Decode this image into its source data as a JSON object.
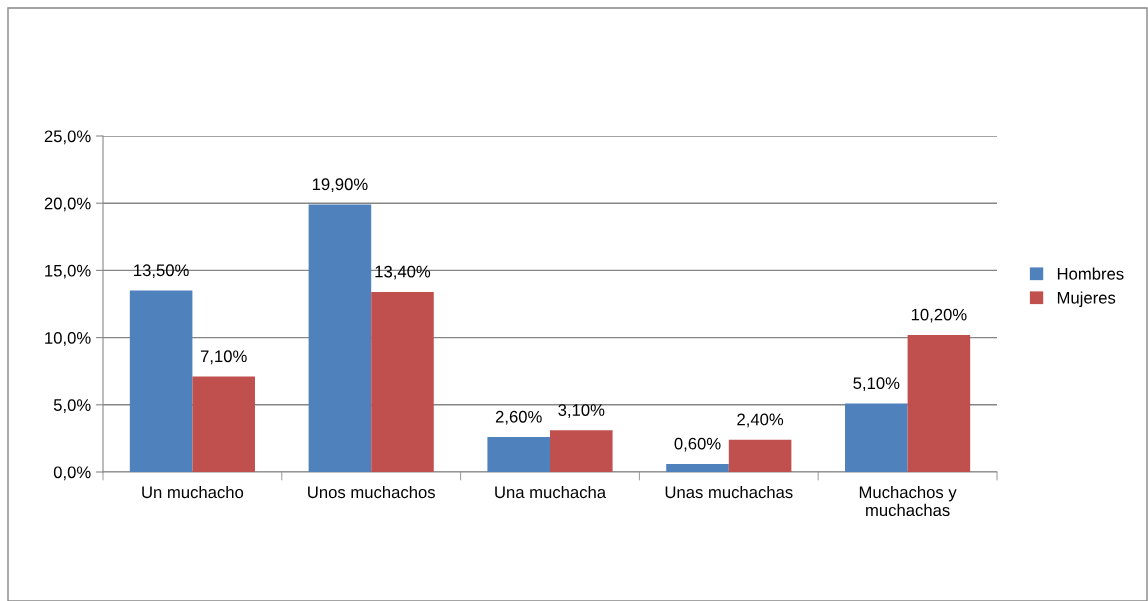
{
  "chart_data": {
    "type": "bar",
    "categories": [
      "Un muchacho",
      "Unos muchachos",
      "Una muchacha",
      "Unas muchachas",
      "Muchachos y muchachas"
    ],
    "series": [
      {
        "name": "Hombres",
        "color": "#4f81bd",
        "values": [
          13.5,
          19.9,
          2.6,
          0.6,
          5.1
        ],
        "value_labels": [
          "13,50%",
          "19,90%",
          "2,60%",
          "0,60%",
          "5,10%"
        ]
      },
      {
        "name": "Mujeres",
        "color": "#c0504d",
        "values": [
          7.1,
          13.4,
          3.1,
          2.4,
          10.2
        ],
        "value_labels": [
          "7,10%",
          "13,40%",
          "3,10%",
          "2,40%",
          "10,20%"
        ]
      }
    ],
    "ylim": [
      0,
      25
    ],
    "yticks": [
      {
        "value": 0,
        "label": "0,0%"
      },
      {
        "value": 5,
        "label": "5,0%"
      },
      {
        "value": 10,
        "label": "10,0%"
      },
      {
        "value": 15,
        "label": "15,0%"
      },
      {
        "value": 20,
        "label": "20,0%"
      },
      {
        "value": 25,
        "label": "25,0%"
      }
    ],
    "grid": "y",
    "legend": "right"
  }
}
